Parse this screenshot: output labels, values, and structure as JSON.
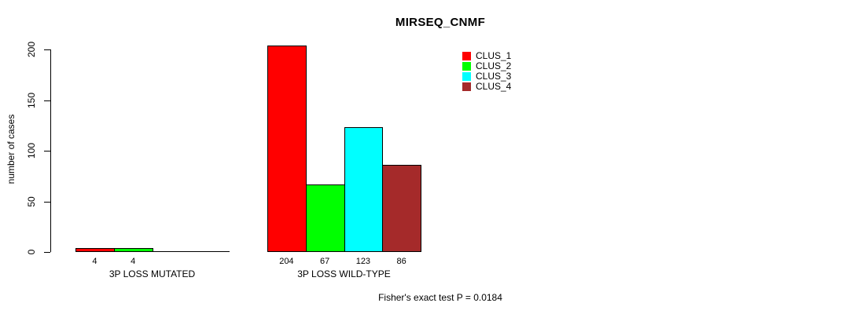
{
  "chart_data": {
    "type": "bar",
    "title": "MIRSEQ_CNMF",
    "ylabel": "number of cases",
    "ylim": [
      0,
      200
    ],
    "yticks": [
      0,
      50,
      100,
      150,
      200
    ],
    "grid": false,
    "legend_position": "top-right",
    "categories": [
      "3P LOSS MUTATED",
      "3P LOSS WILD-TYPE"
    ],
    "series": [
      {
        "name": "CLUS_1",
        "color": "#ff0000",
        "values": [
          4,
          204
        ]
      },
      {
        "name": "CLUS_2",
        "color": "#00ff00",
        "values": [
          4,
          67
        ]
      },
      {
        "name": "CLUS_3",
        "color": "#00ffff",
        "values": [
          0,
          123
        ]
      },
      {
        "name": "CLUS_4",
        "color": "#a52a2a",
        "values": [
          0,
          86
        ]
      }
    ],
    "bar_value_labels": [
      [
        "4",
        "4",
        "",
        ""
      ],
      [
        "204",
        "67",
        "123",
        "86"
      ]
    ],
    "footnote": "Fisher's exact test P = 0.0184"
  }
}
